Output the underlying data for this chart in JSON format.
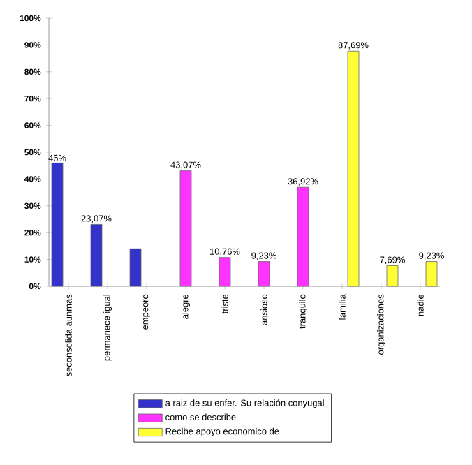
{
  "chart_data": {
    "type": "bar",
    "categories": [
      "seconsolida aunmas",
      "permanece igual",
      "empeoro",
      "alegre",
      "triste",
      "ansioso",
      "tranquilo",
      "familia",
      "organizaciones",
      "nadie"
    ],
    "series": [
      {
        "name": "a raiz de su enfer. Su relación conyugal",
        "color": "#3333cc",
        "values": [
          46,
          23.07,
          14,
          null,
          null,
          null,
          null,
          null,
          null,
          null
        ],
        "value_labels": [
          "46%",
          "23,07%",
          null,
          null,
          null,
          null,
          null,
          null,
          null,
          null
        ]
      },
      {
        "name": "como se describe",
        "color": "#ff33ff",
        "values": [
          null,
          null,
          null,
          43.07,
          10.76,
          9.23,
          36.92,
          null,
          null,
          null
        ],
        "value_labels": [
          null,
          null,
          null,
          "43,07%",
          "10,76%",
          "9,23%",
          "36,92%",
          null,
          null,
          null
        ]
      },
      {
        "name": "Recibe apoyo economico de",
        "color": "#ffff33",
        "values": [
          null,
          null,
          null,
          null,
          null,
          null,
          null,
          87.69,
          7.69,
          9.23
        ],
        "value_labels": [
          null,
          null,
          null,
          null,
          null,
          null,
          null,
          "87,69%",
          "7,69%",
          "9,23%"
        ]
      }
    ],
    "ylim": [
      0,
      100
    ],
    "yticks": [
      {
        "value": 0,
        "label": "0%"
      },
      {
        "value": 10,
        "label": "10%"
      },
      {
        "value": 20,
        "label": "20%"
      },
      {
        "value": 30,
        "label": "30%"
      },
      {
        "value": 40,
        "label": "40%"
      },
      {
        "value": 50,
        "label": "50%"
      },
      {
        "value": 60,
        "label": "60%"
      },
      {
        "value": 70,
        "label": "70%"
      },
      {
        "value": 80,
        "label": "80%"
      },
      {
        "value": 90,
        "label": "90%"
      },
      {
        "value": 100,
        "label": "100%"
      }
    ],
    "grid": false,
    "legend": "bottom"
  }
}
